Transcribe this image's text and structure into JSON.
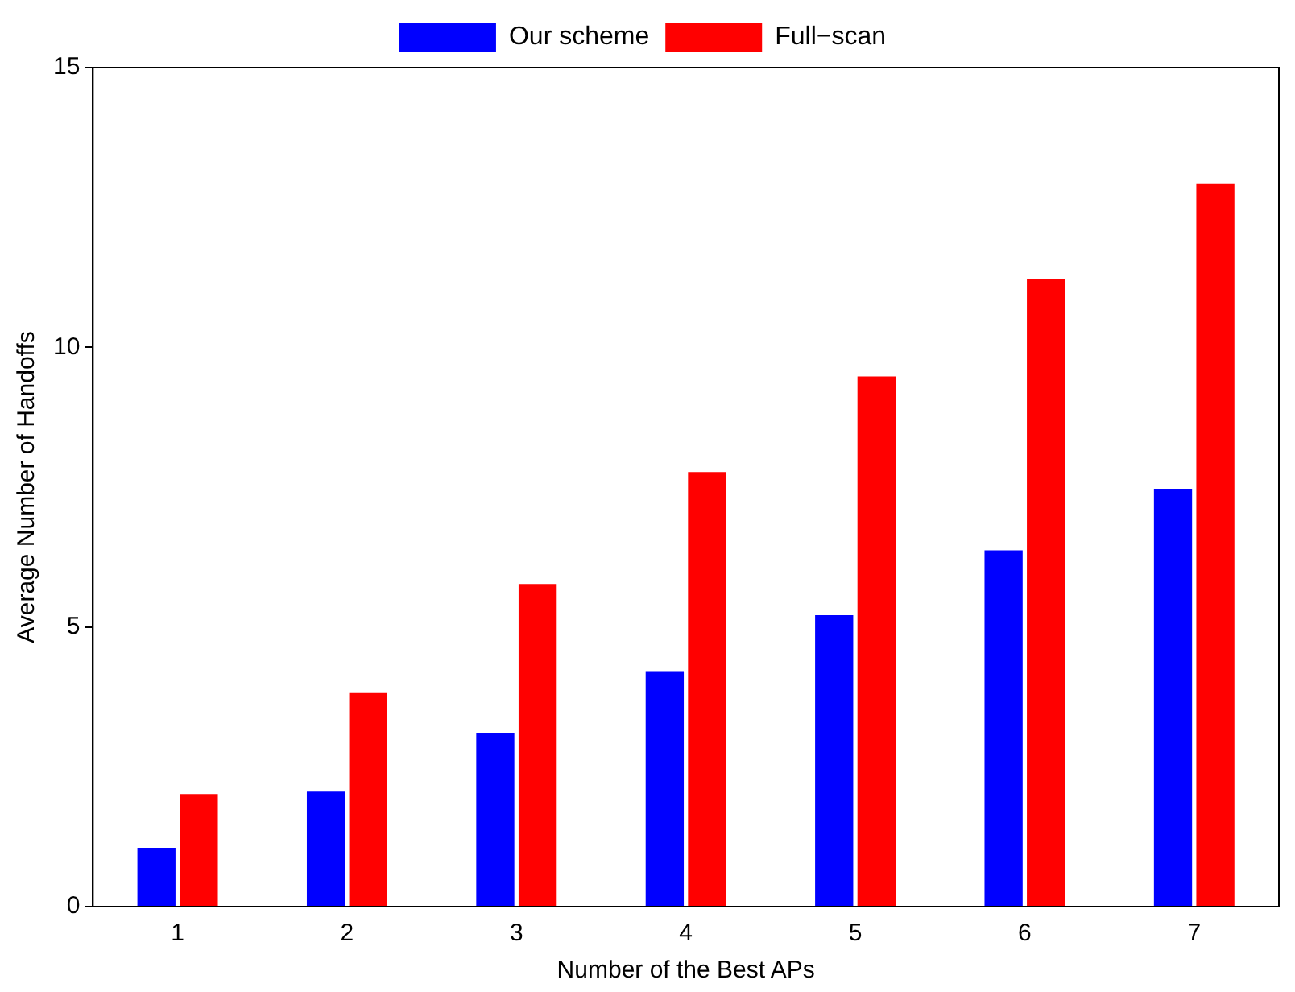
{
  "chart_data": {
    "type": "bar",
    "xlabel": "Number of the Best APs",
    "ylabel": "Average Number of Handoffs",
    "categories": [
      "1",
      "2",
      "3",
      "4",
      "5",
      "6",
      "7"
    ],
    "series": [
      {
        "name": "Our scheme",
        "color": "#0000ff",
        "values": [
          1.05,
          2.07,
          3.11,
          4.21,
          5.21,
          6.37,
          7.47
        ]
      },
      {
        "name": "Full−scan",
        "color": "#ff0000",
        "values": [
          2.01,
          3.82,
          5.77,
          7.77,
          9.48,
          11.23,
          12.93
        ]
      }
    ],
    "ylim": [
      0,
      15
    ],
    "yticks": [
      0,
      5,
      10,
      15
    ],
    "grid": false,
    "legend": "top"
  }
}
